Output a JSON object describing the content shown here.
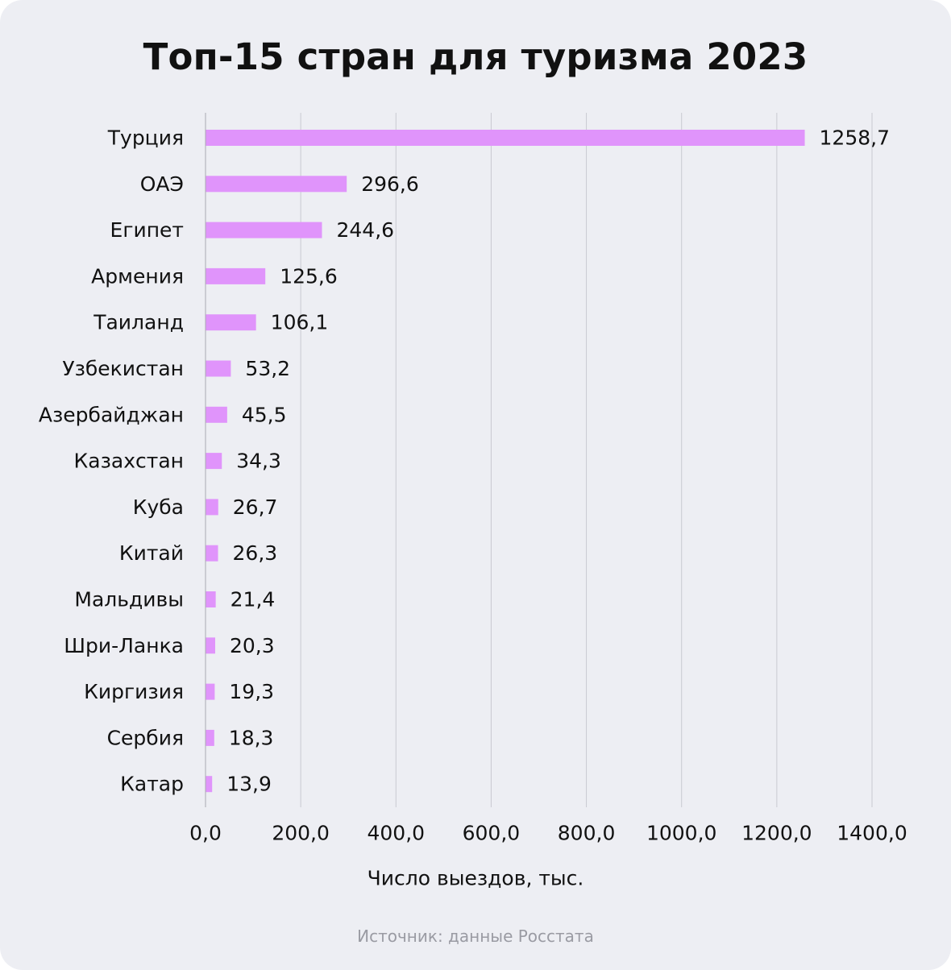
{
  "colors": {
    "background": "#edeef3",
    "bar": "#e094fb",
    "grid": "#c9cad1",
    "text": "#111111",
    "source": "#9a9ba3"
  },
  "source_text": "Источник: данные Росстата",
  "chart_data": {
    "type": "bar",
    "orientation": "horizontal",
    "title": "Топ-15 стран для туризма 2023",
    "xlabel": "Число выездов, тыс.",
    "ylabel": "",
    "xlim": [
      0,
      1400
    ],
    "x_ticks": [
      0,
      200,
      400,
      600,
      800,
      1000,
      1200,
      1400
    ],
    "x_tick_labels": [
      "0,0",
      "200,0",
      "400,0",
      "600,0",
      "800,0",
      "1000,0",
      "1200,0",
      "1400,0"
    ],
    "grid": "vertical",
    "categories": [
      "Турция",
      "ОАЭ",
      "Египет",
      "Армения",
      "Таиланд",
      "Узбекистан",
      "Азербайджан",
      "Казахстан",
      "Куба",
      "Китай",
      "Мальдивы",
      "Шри-Ланка",
      "Киргизия",
      "Сербия",
      "Катар"
    ],
    "values": [
      1258.7,
      296.6,
      244.6,
      125.6,
      106.1,
      53.2,
      45.5,
      34.3,
      26.7,
      26.3,
      21.4,
      20.3,
      19.3,
      18.3,
      13.9
    ],
    "value_labels": [
      "1258,7",
      "296,6",
      "244,6",
      "125,6",
      "106,1",
      "53,2",
      "45,5",
      "34,3",
      "26,7",
      "26,3",
      "21,4",
      "20,3",
      "19,3",
      "18,3",
      "13,9"
    ]
  }
}
